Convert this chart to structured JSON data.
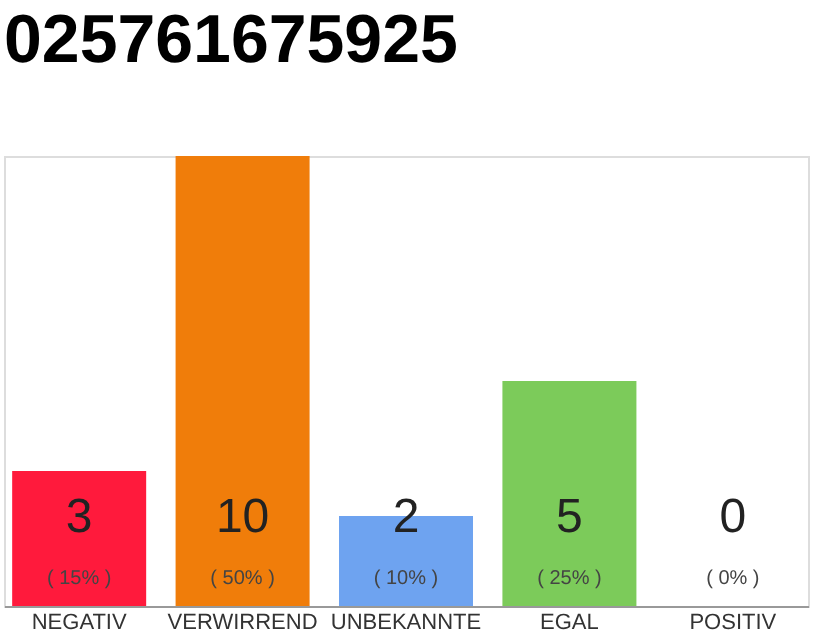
{
  "chart_data": {
    "type": "bar",
    "title": "025761675925",
    "categories": [
      "NEGATIV",
      "VERWIRREND",
      "UNBEKANNTE",
      "EGAL",
      "POSITIV"
    ],
    "values": [
      15,
      50,
      10,
      25,
      0
    ],
    "colors": [
      "#ff1a3c",
      "#f07d0a",
      "#6ea3f0",
      "#7ccb5a",
      "#cccccc"
    ],
    "value_labels": [
      "( 15% )",
      "( 50% )",
      "( 10% )",
      "( 25% )",
      "( 0% )"
    ],
    "annotations": [
      "3",
      "10",
      "2",
      "5",
      "0"
    ],
    "tick_labels": "x",
    "grid": false
  }
}
